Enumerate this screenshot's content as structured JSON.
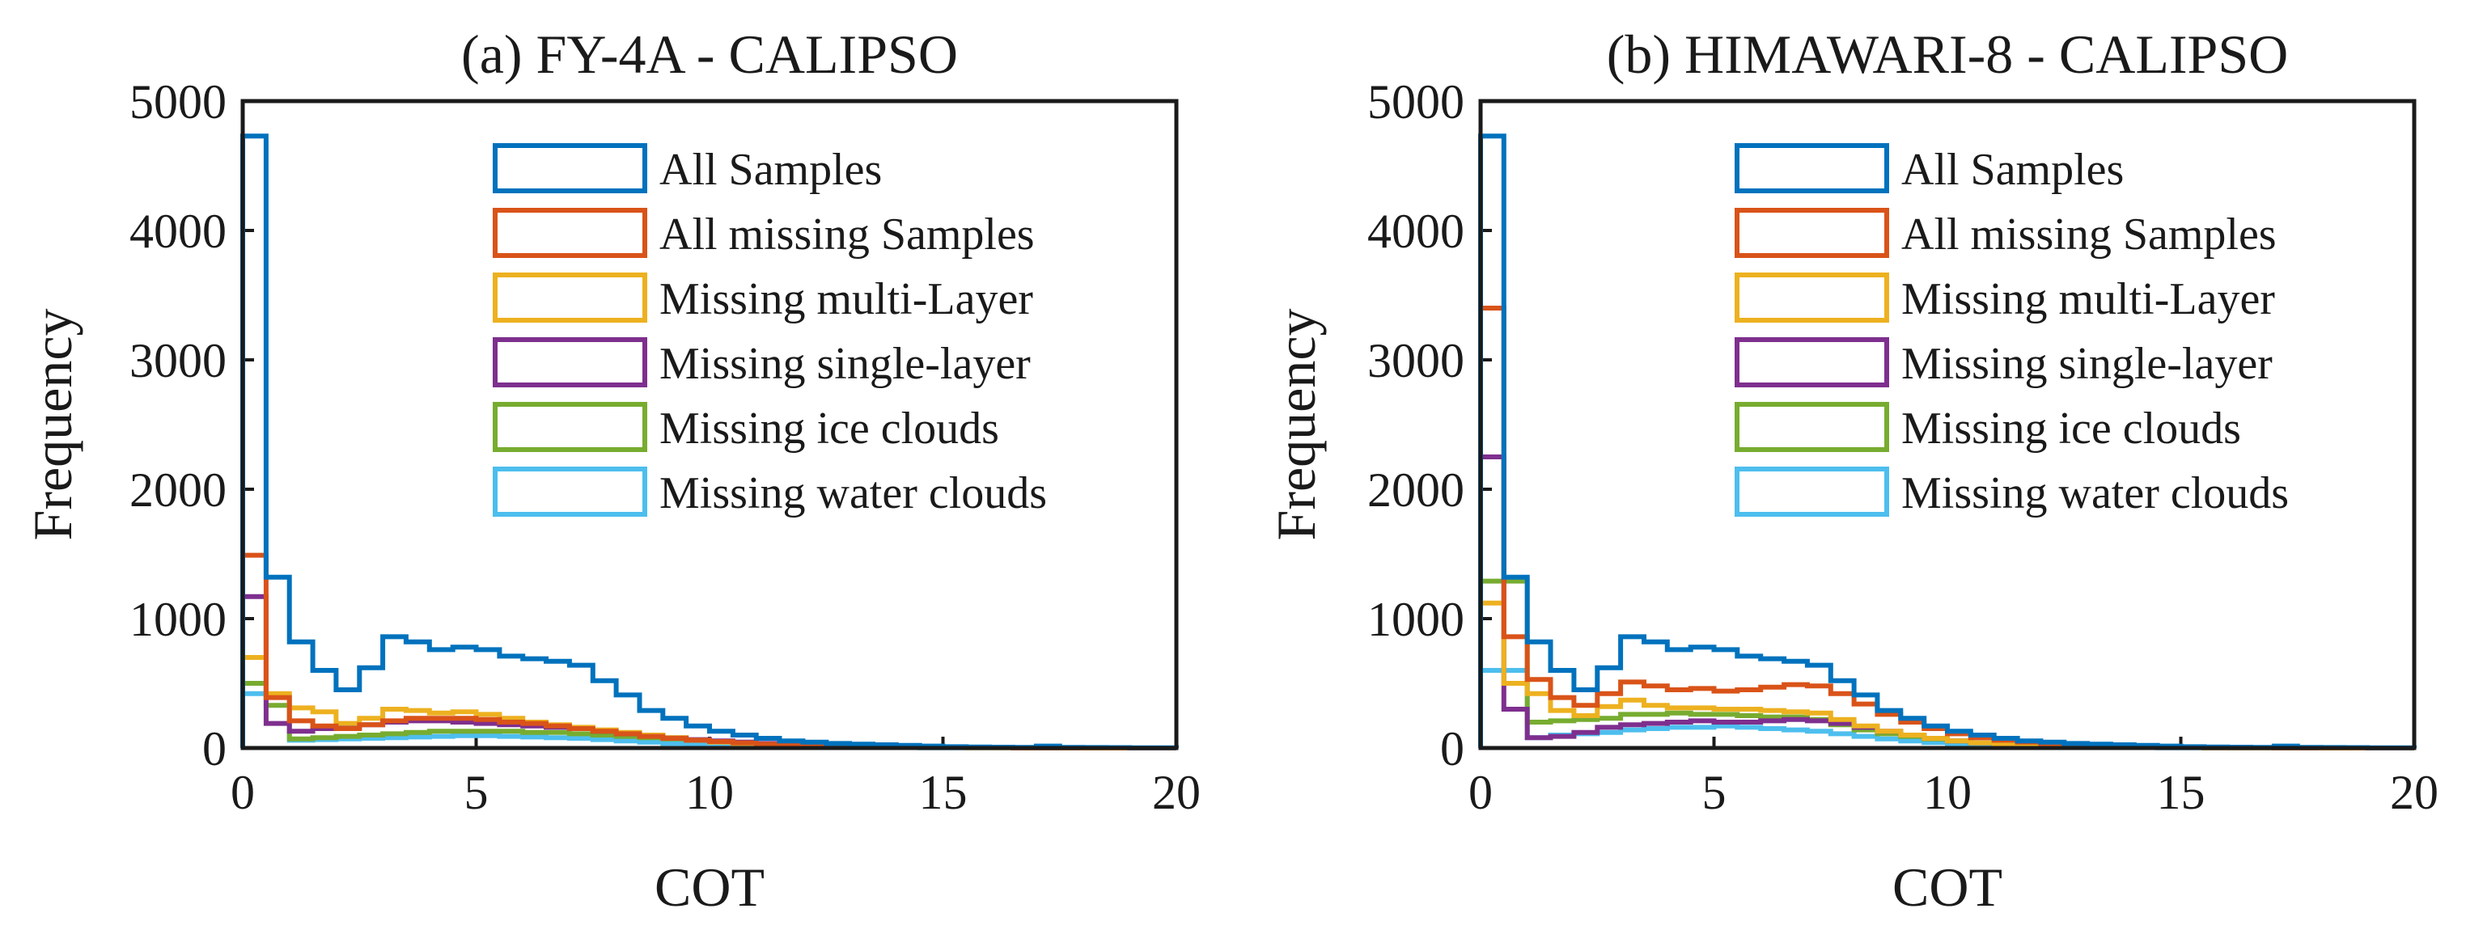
{
  "colors": {
    "all_samples": "#0072BD",
    "all_missing": "#D95319",
    "missing_multi": "#EDB120",
    "missing_single": "#7E2F8E",
    "missing_ice": "#77AC30",
    "missing_water": "#4DBEEE",
    "axis": "#1a1a1a",
    "background": "#ffffff"
  },
  "chart_data": [
    {
      "type": "histogram",
      "title": "(a) FY-4A - CALIPSO",
      "xlabel": "COT",
      "ylabel": "Frequency",
      "xlim": [
        0,
        20
      ],
      "ylim": [
        0,
        5000
      ],
      "xticks": [
        "0",
        "5",
        "10",
        "15",
        "20"
      ],
      "yticks": [
        "0",
        "1000",
        "2000",
        "3000",
        "4000",
        "5000"
      ],
      "bin_width": 0.5,
      "grid": false,
      "legend_position": "top-right",
      "series": [
        {
          "name": "All Samples",
          "color_key": "all_samples",
          "values": [
            4730,
            1320,
            820,
            600,
            450,
            620,
            860,
            820,
            760,
            780,
            760,
            710,
            690,
            670,
            640,
            520,
            410,
            290,
            230,
            170,
            130,
            100,
            75,
            55,
            45,
            35,
            30,
            25,
            20,
            15,
            10,
            8,
            6,
            5,
            15,
            5,
            4,
            3,
            2,
            1
          ]
        },
        {
          "name": "All missing Samples",
          "color_key": "all_missing",
          "values": [
            1490,
            390,
            210,
            170,
            150,
            180,
            210,
            230,
            230,
            230,
            220,
            200,
            190,
            170,
            150,
            130,
            110,
            90,
            75,
            60,
            50,
            40,
            30,
            25,
            20,
            15,
            12,
            10,
            8,
            6,
            5,
            4,
            3,
            2,
            2,
            1,
            1,
            1,
            0,
            0
          ]
        },
        {
          "name": "Missing multi-Layer",
          "color_key": "missing_multi",
          "values": [
            700,
            420,
            310,
            280,
            190,
            230,
            300,
            290,
            270,
            280,
            260,
            230,
            200,
            180,
            160,
            140,
            120,
            100,
            80,
            60,
            45,
            35,
            25,
            20,
            15,
            10,
            8,
            6,
            5,
            4,
            3,
            2,
            2,
            1,
            1,
            1,
            0,
            0,
            0,
            0
          ]
        },
        {
          "name": "Missing single-layer",
          "color_key": "missing_single",
          "values": [
            1170,
            190,
            130,
            150,
            160,
            180,
            200,
            210,
            210,
            200,
            190,
            180,
            170,
            160,
            150,
            130,
            110,
            95,
            80,
            65,
            55,
            45,
            35,
            28,
            22,
            17,
            13,
            10,
            8,
            6,
            5,
            4,
            3,
            2,
            2,
            1,
            1,
            1,
            0,
            0
          ]
        },
        {
          "name": "Missing ice clouds",
          "color_key": "missing_ice",
          "values": [
            500,
            330,
            70,
            80,
            90,
            100,
            110,
            120,
            130,
            130,
            130,
            130,
            120,
            120,
            110,
            100,
            90,
            80,
            70,
            60,
            50,
            40,
            30,
            25,
            20,
            15,
            12,
            10,
            8,
            6,
            5,
            4,
            3,
            2,
            2,
            1,
            1,
            1,
            0,
            0
          ]
        },
        {
          "name": "Missing water clouds",
          "color_key": "missing_water",
          "values": [
            420,
            400,
            60,
            65,
            70,
            75,
            80,
            85,
            90,
            95,
            95,
            90,
            85,
            80,
            75,
            65,
            55,
            45,
            35,
            28,
            22,
            17,
            13,
            10,
            8,
            6,
            5,
            4,
            3,
            2,
            2,
            1,
            1,
            1,
            0,
            0,
            0,
            0,
            0,
            0
          ]
        }
      ]
    },
    {
      "type": "histogram",
      "title": "(b) HIMAWARI-8 - CALIPSO",
      "xlabel": "COT",
      "ylabel": "Frequency",
      "xlim": [
        0,
        20
      ],
      "ylim": [
        0,
        5000
      ],
      "xticks": [
        "0",
        "5",
        "10",
        "15",
        "20"
      ],
      "yticks": [
        "0",
        "1000",
        "2000",
        "3000",
        "4000",
        "5000"
      ],
      "bin_width": 0.5,
      "grid": false,
      "legend_position": "top-right",
      "series": [
        {
          "name": "All Samples",
          "color_key": "all_samples",
          "values": [
            4730,
            1320,
            820,
            600,
            450,
            620,
            860,
            820,
            760,
            780,
            760,
            710,
            690,
            670,
            640,
            520,
            410,
            290,
            230,
            170,
            130,
            100,
            75,
            55,
            45,
            35,
            30,
            25,
            20,
            15,
            10,
            8,
            6,
            5,
            15,
            5,
            4,
            3,
            2,
            1
          ]
        },
        {
          "name": "All missing Samples",
          "color_key": "all_missing",
          "values": [
            3400,
            860,
            530,
            390,
            330,
            420,
            510,
            480,
            450,
            460,
            440,
            450,
            470,
            490,
            480,
            420,
            340,
            260,
            200,
            150,
            110,
            80,
            60,
            45,
            35,
            25,
            20,
            15,
            12,
            9,
            7,
            5,
            4,
            3,
            2,
            2,
            1,
            1,
            0,
            0
          ]
        },
        {
          "name": "Missing multi-Layer",
          "color_key": "missing_multi",
          "values": [
            1120,
            500,
            420,
            290,
            250,
            320,
            370,
            330,
            310,
            310,
            300,
            300,
            290,
            280,
            270,
            220,
            170,
            130,
            100,
            75,
            55,
            40,
            30,
            22,
            16,
            12,
            9,
            7,
            5,
            4,
            3,
            2,
            2,
            1,
            1,
            1,
            0,
            0,
            0,
            0
          ]
        },
        {
          "name": "Missing single-layer",
          "color_key": "missing_single",
          "values": [
            2250,
            300,
            80,
            90,
            120,
            160,
            180,
            190,
            200,
            210,
            200,
            200,
            210,
            220,
            210,
            190,
            160,
            130,
            100,
            75,
            55,
            40,
            30,
            22,
            16,
            12,
            9,
            7,
            5,
            4,
            3,
            2,
            2,
            1,
            1,
            1,
            0,
            0,
            0,
            0
          ]
        },
        {
          "name": "Missing ice clouds",
          "color_key": "missing_ice",
          "values": [
            1290,
            1290,
            200,
            210,
            220,
            230,
            260,
            260,
            270,
            260,
            260,
            250,
            240,
            240,
            220,
            180,
            140,
            110,
            90,
            70,
            55,
            40,
            30,
            22,
            16,
            12,
            9,
            7,
            5,
            4,
            3,
            2,
            2,
            1,
            1,
            1,
            0,
            0,
            0,
            0
          ]
        },
        {
          "name": "Missing water clouds",
          "color_key": "missing_water",
          "values": [
            600,
            600,
            80,
            100,
            110,
            120,
            140,
            150,
            160,
            160,
            170,
            160,
            150,
            140,
            130,
            110,
            90,
            70,
            55,
            42,
            32,
            24,
            18,
            13,
            10,
            7,
            5,
            4,
            3,
            2,
            2,
            1,
            1,
            1,
            0,
            0,
            0,
            0,
            0,
            0
          ]
        }
      ]
    }
  ]
}
